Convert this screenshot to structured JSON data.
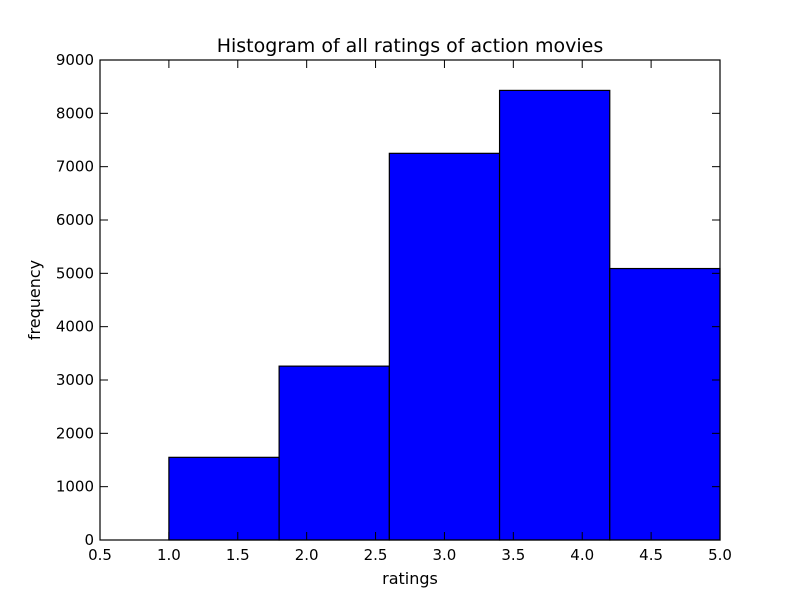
{
  "chart_data": {
    "type": "bar",
    "title": "Histogram of all ratings of action movies",
    "xlabel": "ratings",
    "ylabel": "frequency",
    "xlim": [
      0.5,
      5.0
    ],
    "ylim": [
      0,
      9000
    ],
    "xticks": [
      "0.5",
      "1.0",
      "1.5",
      "2.0",
      "2.5",
      "3.0",
      "3.5",
      "4.0",
      "4.5",
      "5.0"
    ],
    "yticks": [
      "0",
      "1000",
      "2000",
      "3000",
      "4000",
      "5000",
      "6000",
      "7000",
      "8000",
      "9000"
    ],
    "bins": [
      {
        "start": 1.0,
        "end": 1.8,
        "value": 1550
      },
      {
        "start": 1.8,
        "end": 2.6,
        "value": 3260
      },
      {
        "start": 2.6,
        "end": 3.4,
        "value": 7250
      },
      {
        "start": 3.4,
        "end": 4.2,
        "value": 8430
      },
      {
        "start": 4.2,
        "end": 5.0,
        "value": 5090
      }
    ],
    "bar_color": "#0000ff",
    "grid": false,
    "legend": "none"
  }
}
